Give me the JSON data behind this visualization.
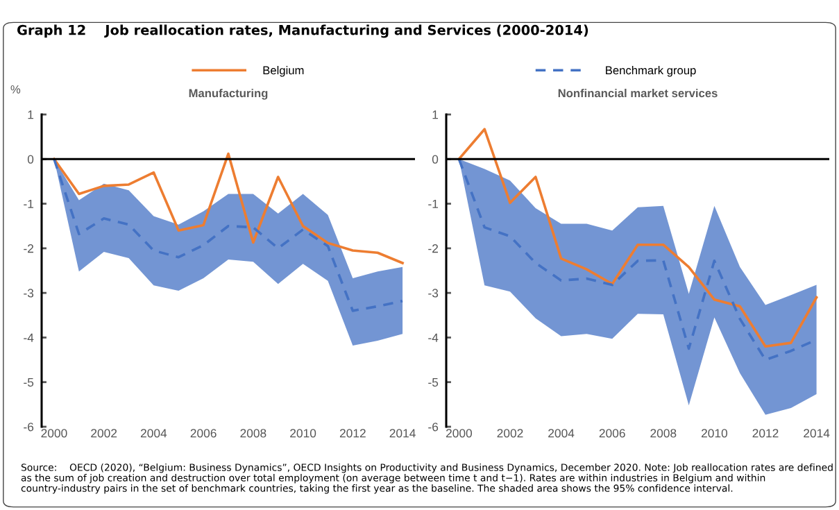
{
  "chart_data": [
    {
      "type": "line",
      "title": "Manufacturing",
      "ylabel": "%",
      "x": [
        2000,
        2001,
        2002,
        2003,
        2004,
        2005,
        2006,
        2007,
        2008,
        2009,
        2010,
        2011,
        2012,
        2013,
        2014
      ],
      "series": [
        {
          "name": "Belgium",
          "color": "#ed7d31",
          "line_style": "solid",
          "values": [
            0,
            -0.78,
            -0.6,
            -0.57,
            -0.3,
            -1.6,
            -1.48,
            0.12,
            -1.87,
            -0.4,
            -1.5,
            -1.88,
            -2.05,
            -2.1,
            -2.33
          ]
        },
        {
          "name": "Benchmark group",
          "color": "#4472c4",
          "line_style": "dashed",
          "values": [
            0,
            -1.68,
            -1.33,
            -1.47,
            -2.05,
            -2.2,
            -1.93,
            -1.5,
            -1.53,
            -2.0,
            -1.58,
            -1.95,
            -3.4,
            -3.3,
            -3.18
          ],
          "lower": [
            0,
            -2.52,
            -2.08,
            -2.22,
            -2.83,
            -2.95,
            -2.67,
            -2.25,
            -2.3,
            -2.8,
            -2.35,
            -2.73,
            -4.18,
            -4.07,
            -3.92
          ],
          "upper": [
            0,
            -0.92,
            -0.55,
            -0.7,
            -1.28,
            -1.47,
            -1.17,
            -0.78,
            -0.78,
            -1.22,
            -0.78,
            -1.25,
            -2.67,
            -2.52,
            -2.42
          ]
        }
      ],
      "xlim": [
        1999.5,
        2014.5
      ],
      "xticks": [
        2000,
        2002,
        2004,
        2006,
        2008,
        2010,
        2012,
        2014
      ],
      "ylim": [
        -6,
        1
      ],
      "yticks": [
        -6,
        -5,
        -4,
        -3,
        -2,
        -1,
        0,
        1
      ],
      "ref_lines": [
        {
          "axis": "y",
          "value": 0,
          "color": "#000000"
        }
      ],
      "grid": false,
      "legend": "top",
      "marker": "none",
      "annotations": [
        "Graph 12    Job reallocation rates, Manufacturing and Services (2000-2014)",
        "Source:    OECD (2020), “Belgium: Business Dynamics”, OECD Insights on Productivity and Business Dynamics, December 2020. Note: Job reallocation rates are defined as the sum of job creation and destruction over total employment (on average between time t and t−1). Rates are within industries in Belgium and within country-industry pairs in the set of benchmark countries, taking the first year as the baseline. The shaded area shows the 95% confidence interval."
      ]
    },
    {
      "type": "line",
      "title": "Nonfinancial market services",
      "x": [
        2000,
        2001,
        2002,
        2003,
        2004,
        2005,
        2006,
        2007,
        2008,
        2009,
        2010,
        2011,
        2012,
        2013,
        2014
      ],
      "series": [
        {
          "name": "Belgium",
          "color": "#ed7d31",
          "line_style": "solid",
          "values": [
            0,
            0.67,
            -0.98,
            -0.4,
            -2.23,
            -2.47,
            -2.8,
            -1.92,
            -1.92,
            -2.42,
            -3.15,
            -3.3,
            -4.2,
            -4.12,
            -3.1
          ]
        },
        {
          "name": "Benchmark group",
          "color": "#4472c4",
          "line_style": "dashed",
          "values": [
            0,
            -1.53,
            -1.73,
            -2.33,
            -2.72,
            -2.68,
            -2.82,
            -2.28,
            -2.27,
            -4.25,
            -2.28,
            -3.58,
            -4.5,
            -4.3,
            -4.05
          ],
          "lower": [
            0,
            -2.83,
            -2.97,
            -3.57,
            -3.97,
            -3.92,
            -4.03,
            -3.47,
            -3.48,
            -5.52,
            -3.55,
            -4.8,
            -5.73,
            -5.58,
            -5.27
          ],
          "upper": [
            0,
            -0.22,
            -0.48,
            -1.1,
            -1.45,
            -1.45,
            -1.6,
            -1.08,
            -1.05,
            -3.02,
            -1.05,
            -2.42,
            -3.27,
            -3.05,
            -2.82
          ]
        }
      ],
      "xlim": [
        1999.5,
        2014.5
      ],
      "xticks": [
        2000,
        2002,
        2004,
        2006,
        2008,
        2010,
        2012,
        2014
      ],
      "ylim": [
        -6,
        1
      ],
      "yticks": [
        -6,
        -5,
        -4,
        -3,
        -2,
        -1,
        0,
        1
      ],
      "ref_lines": [
        {
          "axis": "y",
          "value": 0,
          "color": "#000000"
        }
      ],
      "grid": false,
      "legend": "top",
      "marker": "none"
    }
  ]
}
